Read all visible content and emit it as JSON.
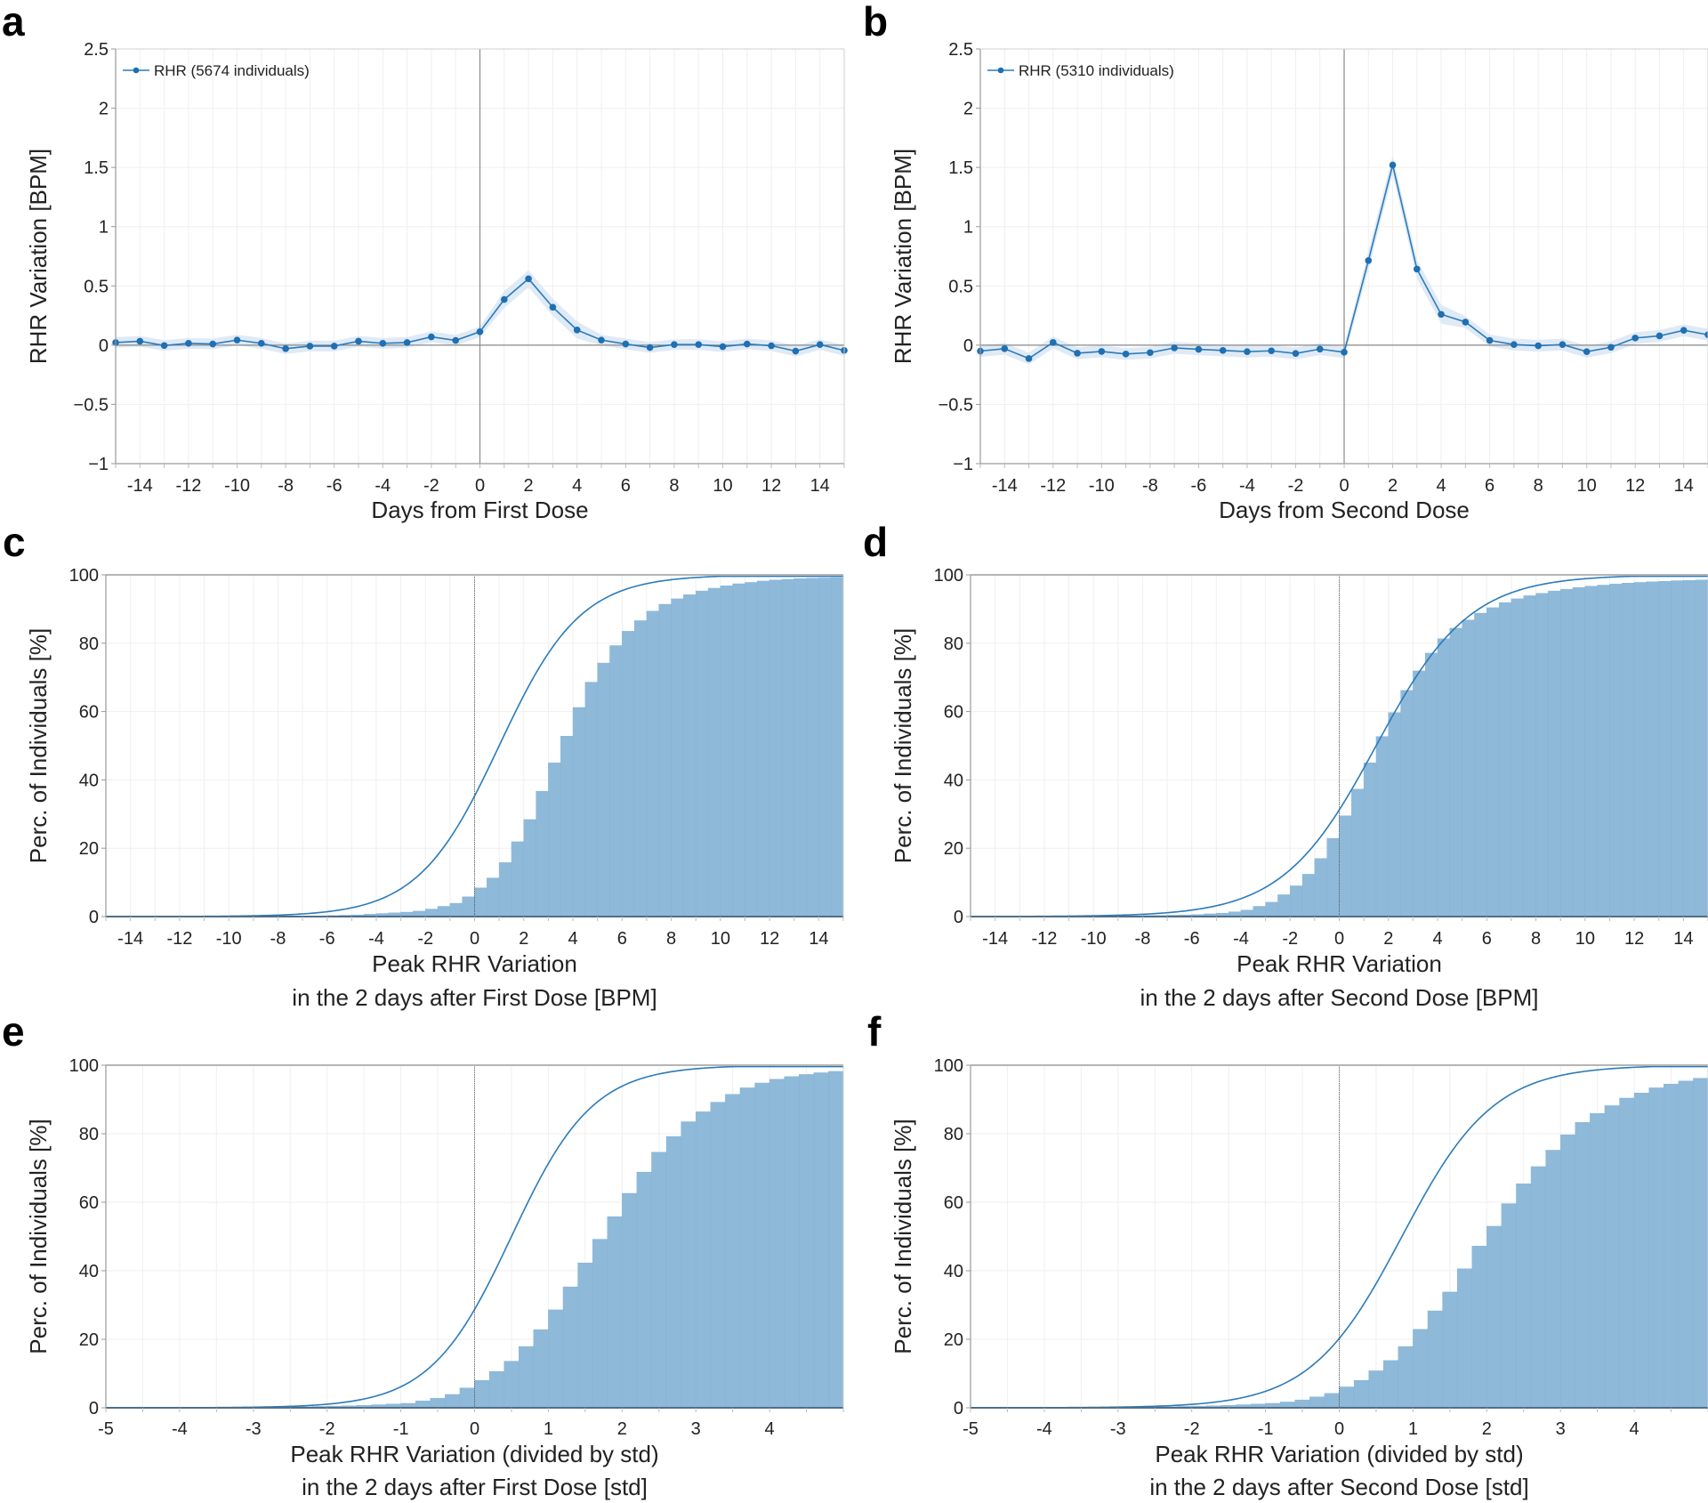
{
  "colors": {
    "line": "#2b7bba",
    "marker": "#1f6fb2",
    "band": "#dbe8f5",
    "bar_fill": "#8fb9d9",
    "bar_edge": "#7fb0d5",
    "axis": "#9a9a9a",
    "grid": "#efefef",
    "zero_line": "#8a8a8a"
  },
  "chart_data": [
    {
      "panel": "a",
      "type": "line",
      "title": "",
      "xlabel": "Days from First Dose",
      "ylabel": "RHR Variation [BPM]",
      "legend": "RHR (5674 individuals)",
      "legend_position": "top-left",
      "xlim": [
        -15,
        15
      ],
      "ylim": [
        -1,
        2.5
      ],
      "xticks": [
        -14,
        -12,
        -10,
        -8,
        -6,
        -4,
        -2,
        0,
        2,
        4,
        6,
        8,
        10,
        12,
        14
      ],
      "yticks": [
        -1,
        -0.5,
        0,
        0.5,
        1,
        1.5,
        2,
        2.5
      ],
      "ytick_labels": [
        "−1",
        "−0.5",
        "0",
        "0.5",
        "1",
        "1.5",
        "2",
        "2.5"
      ],
      "grid": true,
      "x": [
        -15,
        -14,
        -13,
        -12,
        -11,
        -10,
        -9,
        -8,
        -7,
        -6,
        -5,
        -4,
        -3,
        -2,
        -1,
        0,
        1,
        2,
        3,
        4,
        5,
        6,
        7,
        8,
        9,
        10,
        11,
        12,
        13,
        14,
        15
      ],
      "values": [
        0.022,
        0.033,
        -0.003,
        0.015,
        0.01,
        0.043,
        0.015,
        -0.03,
        -0.008,
        -0.008,
        0.033,
        0.015,
        0.022,
        0.07,
        0.04,
        0.113,
        0.385,
        0.56,
        0.32,
        0.128,
        0.043,
        0.01,
        -0.02,
        0.005,
        0.005,
        -0.013,
        0.01,
        -0.005,
        -0.05,
        0.005,
        -0.045
      ],
      "ci_halfwidth": 0.045
    },
    {
      "panel": "b",
      "type": "line",
      "title": "",
      "xlabel": "Days from Second Dose",
      "ylabel": "RHR Variation [BPM]",
      "legend": "RHR (5310 individuals)",
      "legend_position": "top-left",
      "xlim": [
        -15,
        15
      ],
      "ylim": [
        -1,
        2.5
      ],
      "xticks": [
        -14,
        -12,
        -10,
        -8,
        -6,
        -4,
        -2,
        0,
        2,
        4,
        6,
        8,
        10,
        12,
        14
      ],
      "yticks": [
        -1,
        -0.5,
        0,
        0.5,
        1,
        1.5,
        2,
        2.5
      ],
      "ytick_labels": [
        "−1",
        "−0.5",
        "0",
        "0.5",
        "1",
        "1.5",
        "2",
        "2.5"
      ],
      "grid": true,
      "x": [
        -15,
        -14,
        -13,
        -12,
        -11,
        -10,
        -9,
        -8,
        -7,
        -6,
        -5,
        -4,
        -3,
        -2,
        -1,
        0,
        1,
        2,
        3,
        4,
        5,
        6,
        7,
        8,
        9,
        10,
        11,
        12,
        13,
        14,
        15
      ],
      "values": [
        -0.05,
        -0.03,
        -0.113,
        0.023,
        -0.068,
        -0.053,
        -0.075,
        -0.063,
        -0.023,
        -0.035,
        -0.045,
        -0.055,
        -0.048,
        -0.07,
        -0.033,
        -0.06,
        0.714,
        1.52,
        0.642,
        0.26,
        0.195,
        0.04,
        0.005,
        -0.005,
        0.005,
        -0.055,
        -0.018,
        0.06,
        0.078,
        0.125,
        0.088
      ],
      "ci_halfwidth": 0.05
    },
    {
      "panel": "c",
      "type": "bar",
      "subtype": "cumulative-histogram-with-cdf",
      "xlabel": "Peak RHR Variation",
      "xlabel_line2": "in the 2 days after First Dose [BPM]",
      "ylabel": "Perc. of Individuals [%]",
      "xlim": [
        -15,
        15
      ],
      "ylim": [
        0,
        100
      ],
      "xticks": [
        -14,
        -12,
        -10,
        -8,
        -6,
        -4,
        -2,
        0,
        2,
        4,
        6,
        8,
        10,
        12,
        14
      ],
      "yticks": [
        0,
        20,
        40,
        60,
        80,
        100
      ],
      "grid": true,
      "bin_width": 0.5,
      "bin_start": -15,
      "values": [
        0.1,
        0.1,
        0.1,
        0.1,
        0.1,
        0.1,
        0.1,
        0.1,
        0.1,
        0.1,
        0.1,
        0.1,
        0.1,
        0.1,
        0.1,
        0.1,
        0.2,
        0.2,
        0.3,
        0.4,
        0.5,
        0.7,
        0.9,
        1.1,
        1.3,
        1.6,
        2.2,
        3.0,
        3.9,
        5.8,
        8.4,
        11.3,
        15.8,
        21.9,
        28.4,
        36.7,
        45.0,
        52.8,
        61.2,
        68.6,
        74.2,
        79.3,
        83.5,
        86.6,
        89.4,
        91.4,
        93.0,
        94.2,
        95.3,
        96.1,
        96.8,
        97.4,
        97.8,
        98.2,
        98.5,
        98.7,
        98.9,
        99.0,
        99.1,
        99.2,
        99.3,
        99.3,
        99.4,
        99.4,
        99.4,
        99.5,
        99.5,
        99.5,
        99.5,
        99.6
      ],
      "cdf_mu": 1.0,
      "cdf_s": 1.65
    },
    {
      "panel": "d",
      "type": "bar",
      "subtype": "cumulative-histogram-with-cdf",
      "xlabel": "Peak RHR Variation",
      "xlabel_line2": "in the 2 days after Second Dose [BPM]",
      "ylabel": "Perc. of Individuals [%]",
      "xlim": [
        -15,
        15
      ],
      "ylim": [
        0,
        100
      ],
      "xticks": [
        -14,
        -12,
        -10,
        -8,
        -6,
        -4,
        -2,
        0,
        2,
        4,
        6,
        8,
        10,
        12,
        14
      ],
      "yticks": [
        0,
        20,
        40,
        60,
        80,
        100
      ],
      "grid": true,
      "bin_width": 0.5,
      "bin_start": -15,
      "values": [
        0.1,
        0.1,
        0.1,
        0.1,
        0.1,
        0.1,
        0.1,
        0.1,
        0.1,
        0.1,
        0.1,
        0.2,
        0.2,
        0.2,
        0.3,
        0.3,
        0.4,
        0.5,
        0.6,
        0.8,
        1.0,
        1.4,
        1.9,
        3.0,
        4.2,
        6.4,
        9.0,
        12.4,
        17.0,
        22.9,
        29.5,
        37.3,
        45.0,
        52.7,
        59.7,
        66.2,
        71.9,
        77.1,
        81.3,
        84.4,
        86.8,
        88.8,
        90.4,
        91.9,
        93.0,
        93.9,
        94.6,
        95.3,
        95.8,
        96.3,
        96.7,
        97.0,
        97.3,
        97.6,
        97.8,
        98.0,
        98.1,
        98.3,
        98.4,
        98.5
      ],
      "cdf_mu": 1.5,
      "cdf_s": 1.9
    },
    {
      "panel": "e",
      "type": "bar",
      "subtype": "cumulative-histogram-with-cdf",
      "xlabel": "Peak RHR Variation (divided by std)",
      "xlabel_line2": "in the 2 days after First Dose [std]",
      "ylabel": "Perc. of Individuals [%]",
      "xlim": [
        -5,
        5
      ],
      "ylim": [
        0,
        100
      ],
      "xticks": [
        -5,
        -4,
        -3,
        -2,
        -1,
        0,
        1,
        2,
        3,
        4
      ],
      "yticks": [
        0,
        20,
        40,
        60,
        80,
        100
      ],
      "grid": true,
      "bin_width": 0.2,
      "bin_start": -5,
      "values": [
        0.1,
        0.1,
        0.1,
        0.1,
        0.1,
        0.1,
        0.1,
        0.1,
        0.1,
        0.2,
        0.2,
        0.2,
        0.3,
        0.3,
        0.4,
        0.5,
        0.6,
        0.7,
        0.9,
        1.1,
        1.3,
        2.0,
        2.8,
        3.9,
        5.8,
        8.0,
        10.6,
        13.6,
        17.9,
        22.8,
        28.6,
        35.3,
        42.3,
        49.2,
        55.8,
        62.6,
        68.8,
        74.6,
        79.2,
        83.5,
        86.4,
        89.2,
        91.5,
        93.4,
        94.8,
        95.9,
        96.7,
        97.3,
        97.8,
        98.2,
        98.5,
        98.7,
        98.9,
        99.1,
        99.2,
        99.3,
        99.4,
        99.4,
        99.5,
        99.5
      ],
      "cdf_mu": 0.5,
      "cdf_s": 0.55
    },
    {
      "panel": "f",
      "type": "bar",
      "subtype": "cumulative-histogram-with-cdf",
      "xlabel": "Peak RHR Variation (divided by std)",
      "xlabel_line2": "in the 2 days after Second Dose [std]",
      "ylabel": "Perc. of Individuals [%]",
      "xlim": [
        -5,
        5
      ],
      "ylim": [
        0,
        100
      ],
      "xticks": [
        -5,
        -4,
        -3,
        -2,
        -1,
        0,
        1,
        2,
        3,
        4
      ],
      "yticks": [
        0,
        20,
        40,
        60,
        80,
        100
      ],
      "grid": true,
      "bin_width": 0.2,
      "bin_start": -5,
      "values": [
        0.1,
        0.1,
        0.1,
        0.1,
        0.1,
        0.1,
        0.1,
        0.1,
        0.1,
        0.2,
        0.2,
        0.2,
        0.3,
        0.3,
        0.4,
        0.5,
        0.6,
        0.7,
        0.9,
        1.1,
        1.3,
        1.7,
        2.3,
        3.2,
        4.2,
        6.1,
        8.0,
        10.8,
        13.8,
        17.9,
        22.9,
        28.3,
        33.8,
        40.6,
        47.2,
        53.0,
        59.6,
        65.4,
        70.4,
        75.2,
        79.7,
        83.3,
        85.9,
        88.2,
        90.4,
        91.9,
        93.4,
        94.5,
        95.4,
        96.2,
        96.8,
        97.3,
        97.7,
        98.0,
        98.2,
        98.4,
        98.5,
        98.6,
        98.7,
        98.8
      ],
      "cdf_mu": 0.85,
      "cdf_s": 0.62
    }
  ],
  "panels": {
    "a": {
      "letter": "a"
    },
    "b": {
      "letter": "b"
    },
    "c": {
      "letter": "c"
    },
    "d": {
      "letter": "d"
    },
    "e": {
      "letter": "e"
    },
    "f": {
      "letter": "f"
    }
  }
}
